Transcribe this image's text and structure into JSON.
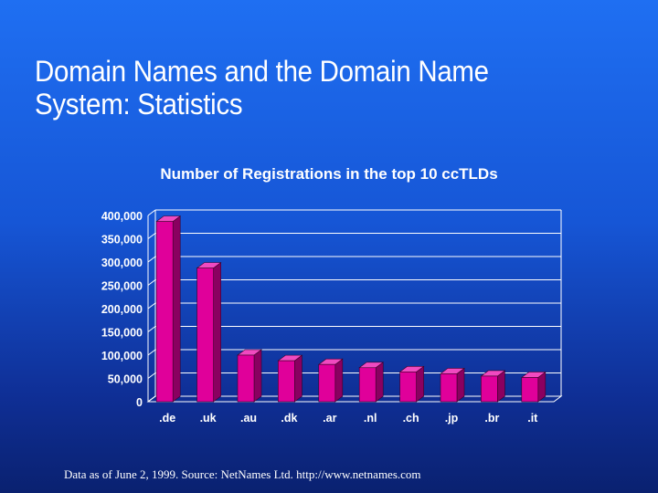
{
  "slide": {
    "title_line1": "Domain Names and the Domain Name",
    "title_line2": "System:  Statistics",
    "source": "Data as of June 2, 1999. Source: NetNames Ltd.  http://www.netnames.com"
  },
  "colors": {
    "bar_front": "#e0009a",
    "bar_side": "#8a0060",
    "bar_top": "#f04ac0",
    "grid": "#ffffff",
    "text": "#ffffff"
  },
  "chart_data": {
    "type": "bar",
    "title": "Number of Registrations in the top 10 ccTLDs",
    "xlabel": "",
    "ylabel": "",
    "categories": [
      ".de",
      ".uk",
      ".au",
      ".dk",
      ".ar",
      ".nl",
      ".ch",
      ".jp",
      ".br",
      ".it"
    ],
    "values": [
      387000,
      287000,
      100000,
      88000,
      80000,
      73000,
      64000,
      60000,
      55000,
      52000
    ],
    "ylim": [
      0,
      400000
    ],
    "yticks": [
      0,
      50000,
      100000,
      150000,
      200000,
      250000,
      300000,
      350000,
      400000
    ],
    "ytick_labels": [
      "0",
      "50,000",
      "100,000",
      "150,000",
      "200,000",
      "250,000",
      "300,000",
      "350,000",
      "400,000"
    ],
    "grid": true,
    "legend": "none"
  }
}
